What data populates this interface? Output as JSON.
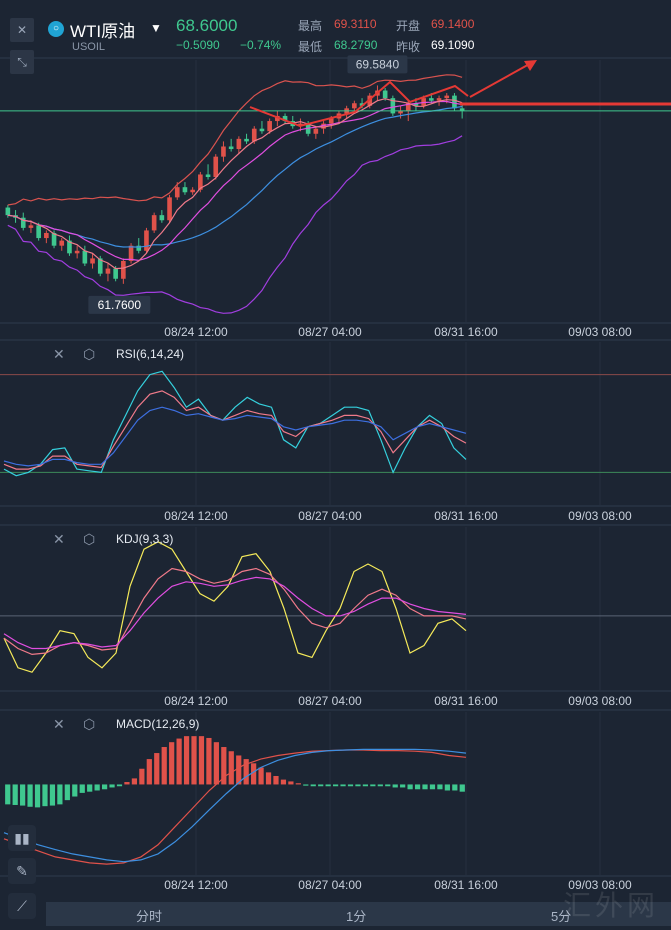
{
  "header": {
    "symbol_name": "WTI原油",
    "symbol_code": "USOIL",
    "price": "68.6000",
    "change": "−0.5090",
    "change_pct": "−0.74%",
    "high_label": "最高",
    "high": "69.3110",
    "open_label": "开盘",
    "open": "69.1400",
    "low_label": "最低",
    "low": "68.2790",
    "close_label": "昨收",
    "prev_close": "69.1090",
    "colors": {
      "up": "#e0524a",
      "down": "#3fc88f",
      "accent": "#20a4d4"
    }
  },
  "chart_data": [
    {
      "type": "candlestick",
      "title": "",
      "x_ticks": [
        "08/24 12:00",
        "08/27 04:00",
        "08/31 16:00",
        "09/03 08:00"
      ],
      "high_label": "69.5840",
      "low_label": "61.7600",
      "ylim": [
        60.3,
        70.6
      ],
      "candles": [
        [
          64.8,
          64.9,
          64.4,
          64.5
        ],
        [
          64.5,
          64.7,
          64.2,
          64.4
        ],
        [
          64.4,
          64.6,
          63.9,
          64.0
        ],
        [
          64.0,
          64.3,
          63.8,
          64.1
        ],
        [
          64.1,
          64.2,
          63.5,
          63.6
        ],
        [
          63.6,
          63.9,
          63.4,
          63.8
        ],
        [
          63.8,
          63.9,
          63.2,
          63.3
        ],
        [
          63.3,
          63.6,
          63.1,
          63.5
        ],
        [
          63.5,
          63.7,
          62.9,
          63.0
        ],
        [
          63.0,
          63.3,
          62.8,
          63.1
        ],
        [
          63.1,
          63.3,
          62.5,
          62.6
        ],
        [
          62.6,
          63.0,
          62.4,
          62.8
        ],
        [
          62.8,
          62.9,
          62.1,
          62.2
        ],
        [
          62.2,
          62.6,
          61.9,
          62.4
        ],
        [
          62.4,
          62.5,
          61.9,
          62.0
        ],
        [
          62.0,
          62.8,
          61.8,
          62.7
        ],
        [
          62.7,
          63.4,
          62.6,
          63.3
        ],
        [
          63.3,
          63.6,
          63.0,
          63.1
        ],
        [
          63.1,
          64.0,
          63.0,
          63.9
        ],
        [
          63.9,
          64.6,
          63.8,
          64.5
        ],
        [
          64.5,
          64.7,
          64.2,
          64.3
        ],
        [
          64.3,
          65.3,
          64.2,
          65.2
        ],
        [
          65.2,
          65.8,
          65.1,
          65.6
        ],
        [
          65.6,
          65.8,
          65.3,
          65.4
        ],
        [
          65.4,
          65.6,
          65.3,
          65.5
        ],
        [
          65.5,
          66.2,
          65.4,
          66.1
        ],
        [
          66.1,
          66.5,
          65.9,
          66.0
        ],
        [
          66.0,
          66.9,
          65.9,
          66.8
        ],
        [
          66.8,
          67.4,
          66.6,
          67.2
        ],
        [
          67.2,
          67.5,
          67.0,
          67.1
        ],
        [
          67.1,
          67.6,
          66.9,
          67.5
        ],
        [
          67.5,
          67.7,
          67.3,
          67.4
        ],
        [
          67.4,
          68.0,
          67.3,
          67.9
        ],
        [
          67.9,
          68.2,
          67.7,
          67.8
        ],
        [
          67.8,
          68.3,
          67.7,
          68.2
        ],
        [
          68.2,
          68.6,
          68.0,
          68.4
        ],
        [
          68.4,
          68.5,
          68.1,
          68.2
        ],
        [
          68.2,
          68.4,
          67.9,
          68.0
        ],
        [
          68.0,
          68.3,
          67.8,
          68.1
        ],
        [
          68.1,
          68.2,
          67.6,
          67.7
        ],
        [
          67.7,
          68.0,
          67.5,
          67.9
        ],
        [
          67.9,
          68.2,
          67.7,
          68.1
        ],
        [
          68.1,
          68.4,
          67.9,
          68.3
        ],
        [
          68.3,
          68.6,
          68.1,
          68.5
        ],
        [
          68.5,
          68.8,
          68.3,
          68.7
        ],
        [
          68.7,
          69.0,
          68.5,
          68.9
        ],
        [
          68.9,
          69.1,
          68.7,
          68.8
        ],
        [
          68.8,
          69.3,
          68.7,
          69.2
        ],
        [
          69.2,
          69.6,
          69.0,
          69.4
        ],
        [
          69.4,
          69.5,
          69.0,
          69.1
        ],
        [
          69.1,
          69.2,
          68.4,
          68.5
        ],
        [
          68.5,
          68.8,
          68.3,
          68.6
        ],
        [
          68.6,
          69.0,
          68.2,
          68.9
        ],
        [
          68.9,
          69.1,
          68.6,
          68.8
        ],
        [
          68.8,
          69.2,
          68.7,
          69.1
        ],
        [
          69.1,
          69.3,
          68.9,
          69.0
        ],
        [
          69.0,
          69.2,
          68.8,
          69.1
        ],
        [
          69.1,
          69.3,
          68.9,
          69.2
        ],
        [
          69.2,
          69.3,
          68.6,
          68.7
        ],
        [
          68.7,
          68.9,
          68.3,
          68.6
        ]
      ]
    },
    {
      "type": "line",
      "title": "RSI(6,14,24)",
      "x_ticks": [
        "08/24 12:00",
        "08/27 04:00",
        "08/31 16:00",
        "09/03 08:00"
      ],
      "ylim": [
        0,
        100
      ],
      "ref_lines": [
        80,
        20
      ],
      "series": [
        {
          "color": "#35d0dd",
          "values": [
            22,
            18,
            20,
            25,
            34,
            35,
            22,
            21,
            20,
            40,
            55,
            70,
            80,
            82,
            72,
            60,
            65,
            55,
            52,
            60,
            66,
            62,
            60,
            40,
            35,
            48,
            50,
            55,
            60,
            60,
            58,
            40,
            20,
            35,
            48,
            55,
            50,
            35,
            28
          ]
        },
        {
          "color": "#f07a8a",
          "values": [
            25,
            22,
            22,
            24,
            30,
            30,
            25,
            24,
            23,
            36,
            48,
            60,
            68,
            70,
            66,
            58,
            60,
            55,
            52,
            55,
            58,
            56,
            55,
            45,
            42,
            48,
            50,
            52,
            55,
            55,
            53,
            45,
            32,
            40,
            48,
            52,
            48,
            42,
            38
          ]
        },
        {
          "color": "#3d6fe0",
          "values": [
            27,
            25,
            24,
            25,
            28,
            28,
            26,
            25,
            25,
            32,
            42,
            52,
            58,
            60,
            58,
            55,
            56,
            54,
            52,
            53,
            55,
            54,
            53,
            48,
            46,
            48,
            49,
            50,
            52,
            52,
            51,
            48,
            40,
            44,
            48,
            50,
            48,
            46,
            44
          ]
        }
      ]
    },
    {
      "type": "line",
      "title": "KDJ(9,3,3)",
      "x_ticks": [
        "08/24 12:00",
        "08/27 04:00",
        "08/31 16:00",
        "09/03 08:00"
      ],
      "ylim": [
        0,
        110
      ],
      "ref_lines": [
        50
      ],
      "series": [
        {
          "color": "#f5ea5a",
          "values": [
            35,
            15,
            12,
            25,
            40,
            38,
            22,
            15,
            25,
            70,
            95,
            100,
            95,
            80,
            65,
            60,
            70,
            90,
            92,
            80,
            55,
            25,
            22,
            40,
            55,
            80,
            85,
            80,
            55,
            25,
            30,
            45,
            48,
            40
          ]
        },
        {
          "color": "#f07a8a",
          "values": [
            35,
            28,
            24,
            25,
            30,
            32,
            30,
            27,
            28,
            45,
            62,
            75,
            82,
            80,
            75,
            72,
            74,
            80,
            82,
            78,
            68,
            55,
            45,
            42,
            45,
            55,
            64,
            68,
            64,
            55,
            50,
            50,
            50,
            48
          ]
        },
        {
          "color": "#e04ee0",
          "values": [
            38,
            32,
            28,
            28,
            30,
            32,
            31,
            29,
            30,
            40,
            52,
            62,
            70,
            73,
            72,
            70,
            71,
            74,
            76,
            75,
            70,
            62,
            55,
            50,
            50,
            53,
            58,
            62,
            62,
            58,
            55,
            53,
            52,
            51
          ]
        }
      ]
    },
    {
      "type": "bar+line",
      "title": "MACD(12,26,9)",
      "x_ticks": [
        "08/24 12:00",
        "08/27 04:00",
        "08/31 16:00",
        "09/03 08:00"
      ],
      "ylim": [
        -1.5,
        1.2
      ],
      "histogram": [
        -0.33,
        -0.34,
        -0.35,
        -0.37,
        -0.38,
        -0.36,
        -0.35,
        -0.33,
        -0.26,
        -0.2,
        -0.14,
        -0.12,
        -0.1,
        -0.08,
        -0.05,
        -0.03,
        0.04,
        0.1,
        0.26,
        0.42,
        0.52,
        0.62,
        0.7,
        0.76,
        0.8,
        0.8,
        0.8,
        0.77,
        0.7,
        0.62,
        0.55,
        0.48,
        0.42,
        0.35,
        0.28,
        0.2,
        0.14,
        0.08,
        0.05,
        0.02,
        -0.02,
        -0.03,
        -0.03,
        -0.03,
        -0.03,
        -0.03,
        -0.03,
        -0.03,
        -0.03,
        -0.03,
        -0.03,
        -0.03,
        -0.05,
        -0.05,
        -0.08,
        -0.08,
        -0.08,
        -0.08,
        -0.08,
        -0.1,
        -0.1,
        -0.12
      ],
      "series": [
        {
          "color": "#e0524a",
          "values": [
            -0.9,
            -1.0,
            -1.1,
            -1.2,
            -1.25,
            -1.3,
            -1.32,
            -1.3,
            -1.2,
            -1.0,
            -0.7,
            -0.4,
            -0.1,
            0.15,
            0.32,
            0.42,
            0.48,
            0.52,
            0.55,
            0.56,
            0.57,
            0.57,
            0.56,
            0.56,
            0.55,
            0.53,
            0.48,
            0.45
          ]
        },
        {
          "color": "#3d8fe0",
          "values": [
            -0.8,
            -0.9,
            -1.0,
            -1.08,
            -1.15,
            -1.2,
            -1.25,
            -1.28,
            -1.25,
            -1.15,
            -0.95,
            -0.7,
            -0.42,
            -0.15,
            0.1,
            0.28,
            0.4,
            0.48,
            0.53,
            0.56,
            0.57,
            0.58,
            0.58,
            0.58,
            0.58,
            0.57,
            0.55,
            0.52
          ]
        }
      ]
    }
  ],
  "tabs": [
    "分时",
    "1分",
    "5分"
  ],
  "watermark": "汇外网"
}
